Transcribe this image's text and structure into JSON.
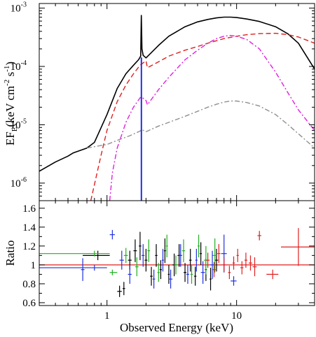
{
  "chart_data": [
    {
      "panel": "top",
      "type": "line",
      "x_scale": "log",
      "y_scale": "log",
      "xlim": [
        0.3,
        40
      ],
      "ylim": [
        5e-07,
        0.0012
      ],
      "ylabel": "EF_E (keV cm^-2 s^-1)",
      "ylabel_main": "EF",
      "ylabel_sub": "E",
      "ylabel_unit": "(keV cm",
      "ylabel_exp1": "-2",
      "ylabel_mid": " s",
      "ylabel_exp2": "-1",
      "ylabel_end": ")",
      "y_ticks": [
        {
          "value": 0.001,
          "base": "10",
          "exp": "-3"
        },
        {
          "value": 0.0001,
          "base": "10",
          "exp": "-4"
        },
        {
          "value": 1e-05,
          "base": "10",
          "exp": "-5"
        },
        {
          "value": 1e-06,
          "base": "10",
          "exp": "-6"
        }
      ],
      "series": [
        {
          "color": "#000000",
          "style": "solid",
          "x": [
            0.3,
            0.4,
            0.5,
            0.55,
            0.7,
            0.8,
            1.0,
            1.2,
            1.4,
            1.6,
            1.75,
            1.82,
            1.84,
            1.86,
            1.9,
            2.0,
            2.5,
            3.0,
            4.0,
            5.0,
            6.0,
            7.0,
            8.0,
            9.0,
            10.0,
            12.0,
            15.0,
            20.0,
            25.0,
            30.0,
            40.0
          ],
          "y": [
            1.6e-06,
            2.3e-06,
            2.9e-06,
            3.3e-06,
            4e-06,
            5e-06,
            1.5e-05,
            4.2e-05,
            7.5e-05,
            0.000105,
            0.00013,
            0.00015,
            0.00075,
            0.0002,
            0.000155,
            0.00014,
            0.00023,
            0.00033,
            0.00048,
            0.00058,
            0.00064,
            0.00068,
            0.0007,
            0.0007,
            0.00069,
            0.00065,
            0.00059,
            0.00048,
            0.00036,
            0.00025,
            9e-05
          ]
        },
        {
          "color": "#e02020",
          "style": "dashed",
          "x": [
            0.75,
            0.9,
            1.0,
            1.2,
            1.4,
            1.6,
            1.8,
            2.0,
            2.05,
            2.5,
            3.0,
            4.0,
            5.0,
            6.0,
            8.0,
            10.0,
            12.0,
            15.0,
            20.0,
            25.0,
            30.0,
            40.0
          ],
          "y": [
            5e-07,
            3e-06,
            8e-06,
            2.5e-05,
            4.8e-05,
            7.5e-05,
            0.000105,
            0.000125,
            9.5e-05,
            0.00012,
            0.00015,
            0.00019,
            0.00022,
            0.00025,
            0.0003,
            0.00033,
            0.00035,
            0.000365,
            0.00037,
            0.00035,
            0.00032,
            0.00025
          ]
        },
        {
          "color": "#e020e0",
          "style": "dashdot",
          "x": [
            1.05,
            1.1,
            1.2,
            1.4,
            1.6,
            1.8,
            1.85,
            2.0,
            2.05,
            2.5,
            3.0,
            4.0,
            5.0,
            6.0,
            7.0,
            8.0,
            9.0,
            10.0,
            12.0,
            15.0,
            20.0,
            25.0,
            30.0,
            40.0
          ],
          "y": [
            5e-07,
            1.5e-06,
            4e-06,
            1.1e-05,
            2e-05,
            2.9e-05,
            3e-05,
            2.6e-05,
            2.2e-05,
            4e-05,
            6.5e-05,
            0.00013,
            0.00019,
            0.00025,
            0.0003,
            0.00033,
            0.00034,
            0.00033,
            0.00029,
            0.0002,
            8e-05,
            3.5e-05,
            1.8e-05,
            8e-06
          ]
        },
        {
          "color": "#909090",
          "style": "dashdot",
          "x": [
            0.7,
            1.0,
            1.2,
            1.5,
            1.8,
            1.85,
            2.0,
            2.5,
            3.0,
            4.0,
            5.0,
            6.0,
            7.0,
            8.0,
            9.0,
            10.0,
            12.0,
            15.0,
            20.0,
            25.0,
            30.0,
            40.0
          ],
          "y": [
            4e-06,
            4.6e-06,
            5.4e-06,
            6.5e-06,
            7.8e-06,
            8.3e-06,
            7.6e-06,
            9.5e-06,
            1.1e-05,
            1.4e-05,
            1.7e-05,
            2e-05,
            2.25e-05,
            2.45e-05,
            2.55e-05,
            2.55e-05,
            2.4e-05,
            2.1e-05,
            1.5e-05,
            1e-05,
            7e-06,
            4e-06
          ]
        },
        {
          "color": "#2030e0",
          "style": "solid",
          "x": [
            1.835,
            1.835,
            1.84,
            1.84,
            1.845,
            1.845,
            1.85,
            1.85
          ],
          "y": [
            5e-07,
            0.00014,
            0.00014,
            5e-07,
            5e-07,
            0.00014,
            0.00014,
            5e-07
          ]
        }
      ]
    },
    {
      "panel": "bottom",
      "type": "scatter",
      "x_scale": "log",
      "y_scale": "linear",
      "xlim": [
        0.3,
        40
      ],
      "ylim": [
        0.57,
        1.68
      ],
      "xlabel": "Observed Energy (keV)",
      "ylabel": "Ratio",
      "x_ticks": [
        {
          "value": 1,
          "label": "1"
        },
        {
          "value": 10,
          "label": "10"
        }
      ],
      "y_ticks": [
        {
          "value": 0.6,
          "label": "0.6"
        },
        {
          "value": 0.8,
          "label": "0.8"
        },
        {
          "value": 1.0,
          "label": "1"
        },
        {
          "value": 1.2,
          "label": "1.2"
        },
        {
          "value": 1.4,
          "label": "1.4"
        },
        {
          "value": 1.6,
          "label": "1.6"
        }
      ],
      "reference_line": {
        "y": 1.0,
        "color": "#e02020"
      },
      "series": [
        {
          "color": "#000000",
          "points": [
            {
              "x": 0.85,
              "y": 1.1,
              "xlo": 0.65,
              "xhi": 1.05,
              "yerr": 0.05
            },
            {
              "x": 1.25,
              "y": 0.72,
              "xlo": 1.2,
              "xhi": 1.3,
              "yerr": 0.06
            },
            {
              "x": 1.35,
              "y": 0.75,
              "xlo": 1.32,
              "xhi": 1.38,
              "yerr": 0.07
            },
            {
              "x": 1.5,
              "y": 1.05,
              "xlo": 1.45,
              "xhi": 1.55,
              "yerr": 0.1
            },
            {
              "x": 1.65,
              "y": 1.15,
              "xlo": 1.6,
              "xhi": 1.7,
              "yerr": 0.12
            },
            {
              "x": 1.8,
              "y": 1.2,
              "xlo": 1.76,
              "xhi": 1.84,
              "yerr": 0.15
            },
            {
              "x": 2.0,
              "y": 1.05,
              "xlo": 1.95,
              "xhi": 2.05,
              "yerr": 0.12
            },
            {
              "x": 2.2,
              "y": 0.88,
              "xlo": 2.15,
              "xhi": 2.25,
              "yerr": 0.1
            },
            {
              "x": 2.4,
              "y": 1.1,
              "xlo": 2.35,
              "xhi": 2.45,
              "yerr": 0.12
            },
            {
              "x": 2.6,
              "y": 0.95,
              "xlo": 2.55,
              "xhi": 2.65,
              "yerr": 0.1
            },
            {
              "x": 2.8,
              "y": 1.15,
              "xlo": 2.75,
              "xhi": 2.85,
              "yerr": 0.13
            },
            {
              "x": 3.0,
              "y": 0.9,
              "xlo": 2.95,
              "xhi": 3.05,
              "yerr": 0.1
            },
            {
              "x": 3.3,
              "y": 1.0,
              "xlo": 3.2,
              "xhi": 3.4,
              "yerr": 0.12
            },
            {
              "x": 3.6,
              "y": 1.1,
              "xlo": 3.5,
              "xhi": 3.7,
              "yerr": 0.12
            },
            {
              "x": 4.0,
              "y": 0.92,
              "xlo": 3.9,
              "xhi": 4.1,
              "yerr": 0.1
            },
            {
              "x": 4.4,
              "y": 1.05,
              "xlo": 4.3,
              "xhi": 4.5,
              "yerr": 0.12
            },
            {
              "x": 4.8,
              "y": 0.88,
              "xlo": 4.7,
              "xhi": 4.9,
              "yerr": 0.1
            },
            {
              "x": 5.3,
              "y": 1.12,
              "xlo": 5.2,
              "xhi": 5.4,
              "yerr": 0.12
            },
            {
              "x": 5.8,
              "y": 0.95,
              "xlo": 5.7,
              "xhi": 5.9,
              "yerr": 0.12
            },
            {
              "x": 6.3,
              "y": 0.85,
              "xlo": 6.2,
              "xhi": 6.4,
              "yerr": 0.12
            },
            {
              "x": 7.0,
              "y": 1.05,
              "xlo": 6.8,
              "xhi": 7.2,
              "yerr": 0.12
            }
          ]
        },
        {
          "color": "#20b020",
          "points": [
            {
              "x": 0.8,
              "y": 1.12,
              "xlo": 0.3,
              "xhi": 1.05,
              "yerr": 0.03
            },
            {
              "x": 1.1,
              "y": 0.92,
              "xlo": 1.05,
              "xhi": 1.2,
              "yerr": 0.03
            },
            {
              "x": 1.4,
              "y": 1.1,
              "xlo": 1.35,
              "xhi": 1.45,
              "yerr": 0.08
            },
            {
              "x": 1.7,
              "y": 0.98,
              "xlo": 1.65,
              "xhi": 1.75,
              "yerr": 0.1
            },
            {
              "x": 2.1,
              "y": 1.15,
              "xlo": 2.05,
              "xhi": 2.15,
              "yerr": 0.12
            },
            {
              "x": 2.5,
              "y": 0.92,
              "xlo": 2.45,
              "xhi": 2.55,
              "yerr": 0.1
            },
            {
              "x": 2.9,
              "y": 1.2,
              "xlo": 2.85,
              "xhi": 2.95,
              "yerr": 0.12
            },
            {
              "x": 3.4,
              "y": 1.0,
              "xlo": 3.3,
              "xhi": 3.5,
              "yerr": 0.1
            },
            {
              "x": 3.9,
              "y": 1.15,
              "xlo": 3.8,
              "xhi": 4.0,
              "yerr": 0.12
            },
            {
              "x": 4.5,
              "y": 0.9,
              "xlo": 4.4,
              "xhi": 4.6,
              "yerr": 0.1
            },
            {
              "x": 5.1,
              "y": 1.2,
              "xlo": 5.0,
              "xhi": 5.2,
              "yerr": 0.12
            },
            {
              "x": 5.8,
              "y": 1.05,
              "xlo": 5.6,
              "xhi": 6.0,
              "yerr": 0.15
            },
            {
              "x": 6.8,
              "y": 1.1,
              "xlo": 6.5,
              "xhi": 7.1,
              "yerr": 0.18
            }
          ]
        },
        {
          "color": "#2030e0",
          "points": [
            {
              "x": 0.8,
              "y": 0.97,
              "xlo": 0.3,
              "xhi": 1.0,
              "yerr": 0.03
            },
            {
              "x": 0.65,
              "y": 0.95,
              "xlo": 0.63,
              "xhi": 0.67,
              "yerr": 0.12
            },
            {
              "x": 1.1,
              "y": 1.32,
              "xlo": 1.05,
              "xhi": 1.15,
              "yerr": 0.05
            },
            {
              "x": 1.3,
              "y": 1.05,
              "xlo": 1.25,
              "xhi": 1.35,
              "yerr": 0.1
            },
            {
              "x": 1.5,
              "y": 0.9,
              "xlo": 1.45,
              "xhi": 1.55,
              "yerr": 0.1
            },
            {
              "x": 1.9,
              "y": 1.1,
              "xlo": 1.85,
              "xhi": 1.95,
              "yerr": 0.12
            },
            {
              "x": 2.3,
              "y": 0.85,
              "xlo": 2.25,
              "xhi": 2.35,
              "yerr": 0.1
            },
            {
              "x": 2.7,
              "y": 1.05,
              "xlo": 2.65,
              "xhi": 2.75,
              "yerr": 0.12
            },
            {
              "x": 3.1,
              "y": 0.85,
              "xlo": 3.0,
              "xhi": 3.2,
              "yerr": 0.1
            },
            {
              "x": 3.7,
              "y": 1.1,
              "xlo": 3.6,
              "xhi": 3.8,
              "yerr": 0.12
            },
            {
              "x": 4.2,
              "y": 0.9,
              "xlo": 4.1,
              "xhi": 4.3,
              "yerr": 0.1
            },
            {
              "x": 4.9,
              "y": 1.05,
              "xlo": 4.8,
              "xhi": 5.0,
              "yerr": 0.12
            },
            {
              "x": 5.5,
              "y": 0.92,
              "xlo": 5.3,
              "xhi": 5.7,
              "yerr": 0.12
            },
            {
              "x": 6.5,
              "y": 1.0,
              "xlo": 6.2,
              "xhi": 6.8,
              "yerr": 0.15
            },
            {
              "x": 8.0,
              "y": 1.12,
              "xlo": 7.6,
              "xhi": 8.4,
              "yerr": 0.2
            },
            {
              "x": 9.5,
              "y": 0.83,
              "xlo": 9.0,
              "xhi": 10.0,
              "yerr": 0.05
            }
          ]
        },
        {
          "color": "#e02020",
          "points": [
            {
              "x": 6.0,
              "y": 1.05,
              "xlo": 5.8,
              "xhi": 6.2,
              "yerr": 0.08
            },
            {
              "x": 6.7,
              "y": 0.95,
              "xlo": 6.5,
              "xhi": 6.9,
              "yerr": 0.08
            },
            {
              "x": 7.3,
              "y": 1.12,
              "xlo": 7.1,
              "xhi": 7.5,
              "yerr": 0.1
            },
            {
              "x": 8.0,
              "y": 1.0,
              "xlo": 7.8,
              "xhi": 8.2,
              "yerr": 0.07
            },
            {
              "x": 8.8,
              "y": 0.92,
              "xlo": 8.6,
              "xhi": 9.0,
              "yerr": 0.07
            },
            {
              "x": 9.5,
              "y": 1.02,
              "xlo": 9.3,
              "xhi": 9.7,
              "yerr": 0.07
            },
            {
              "x": 10.2,
              "y": 1.1,
              "xlo": 10.0,
              "xhi": 10.4,
              "yerr": 0.07
            },
            {
              "x": 11.0,
              "y": 0.97,
              "xlo": 10.7,
              "xhi": 11.3,
              "yerr": 0.07
            },
            {
              "x": 11.8,
              "y": 1.05,
              "xlo": 11.5,
              "xhi": 12.1,
              "yerr": 0.08
            },
            {
              "x": 12.8,
              "y": 1.02,
              "xlo": 12.4,
              "xhi": 13.2,
              "yerr": 0.08
            },
            {
              "x": 13.8,
              "y": 0.98,
              "xlo": 13.3,
              "xhi": 14.3,
              "yerr": 0.1
            },
            {
              "x": 15.0,
              "y": 1.31,
              "xlo": 14.5,
              "xhi": 15.5,
              "yerr": 0.05
            },
            {
              "x": 19.0,
              "y": 0.9,
              "xlo": 17.0,
              "xhi": 21.0,
              "yerr": 0.05
            },
            {
              "x": 30.0,
              "y": 1.19,
              "xlo": 22.0,
              "xhi": 40.0,
              "yerr": 0.2
            }
          ]
        }
      ]
    }
  ]
}
